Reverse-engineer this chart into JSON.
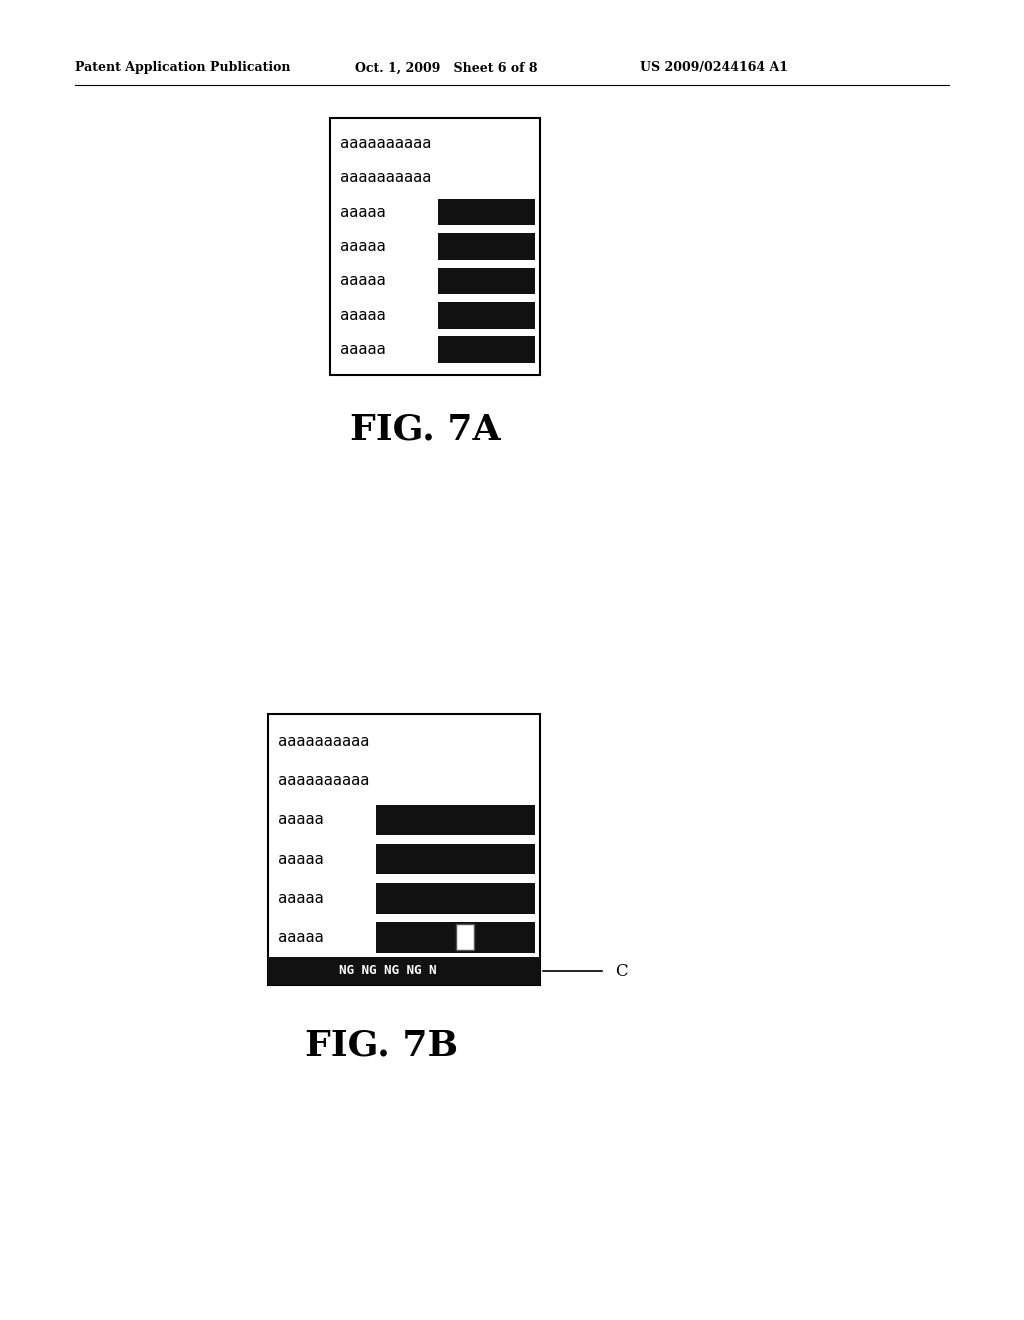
{
  "background_color": "#ffffff",
  "header_left": "Patent Application Publication",
  "header_center": "Oct. 1, 2009   Sheet 6 of 8",
  "header_right": "US 2009/0244164 A1",
  "fig7a_label": "FIG. 7A",
  "fig7b_label": "FIG. 7B",
  "lines_7a": [
    {
      "text": "aaaaaaaaaa",
      "has_black": false
    },
    {
      "text": "aaaaaaaaaa",
      "has_black": false
    },
    {
      "text": "aaaaa",
      "has_black": true
    },
    {
      "text": "aaaaa",
      "has_black": true
    },
    {
      "text": "aaaaa",
      "has_black": true
    },
    {
      "text": "aaaaa",
      "has_black": true
    },
    {
      "text": "aaaaa",
      "has_black": true
    }
  ],
  "lines_7b": [
    {
      "text": "aaaaaaaaaa",
      "has_black": false,
      "has_white_sq": false
    },
    {
      "text": "aaaaaaaaaa",
      "has_black": false,
      "has_white_sq": false
    },
    {
      "text": "aaaaa",
      "has_black": true,
      "has_white_sq": false
    },
    {
      "text": "aaaaa",
      "has_black": true,
      "has_white_sq": false
    },
    {
      "text": "aaaaa",
      "has_black": true,
      "has_white_sq": false
    },
    {
      "text": "aaaaa",
      "has_black": true,
      "has_white_sq": true
    }
  ],
  "ng_bar_text": "NG NG NG NG N",
  "c_label": "C",
  "header_fontsize": 9,
  "text_fontsize": 11,
  "fig_label_fontsize": 26
}
